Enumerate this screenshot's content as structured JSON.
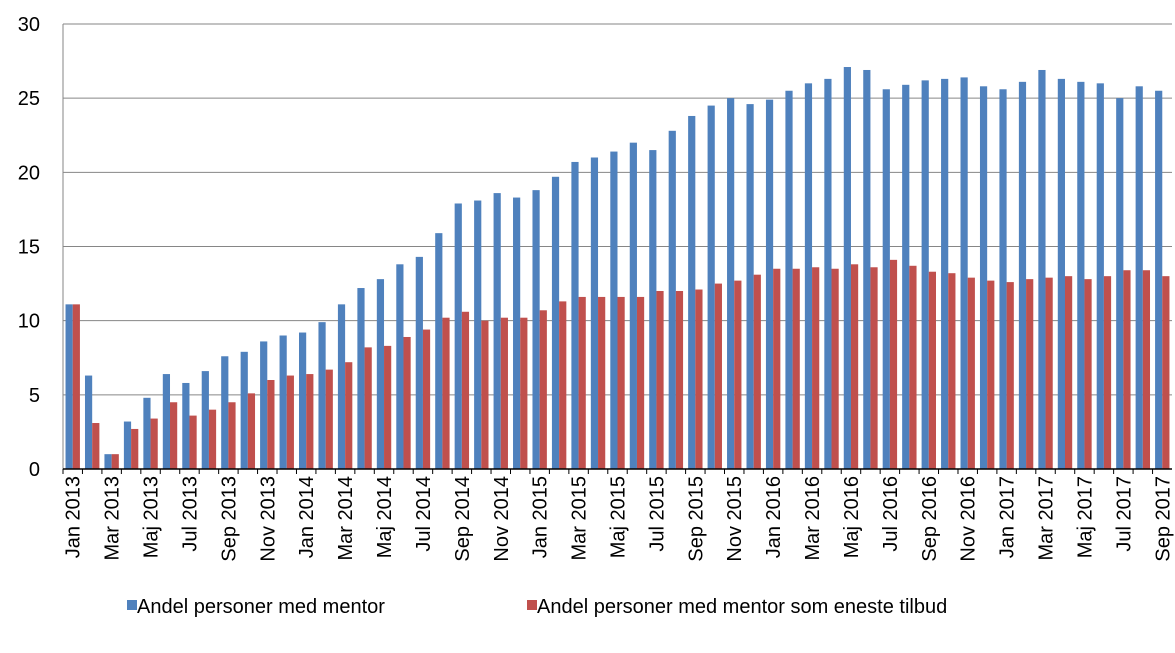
{
  "chart_data": {
    "type": "bar",
    "categories": [
      "Jan 2013",
      null,
      "Mar 2013",
      null,
      "Maj 2013",
      null,
      "Jul 2013",
      null,
      "Sep 2013",
      null,
      "Nov 2013",
      null,
      "Jan 2014",
      null,
      "Mar 2014",
      null,
      "Maj 2014",
      null,
      "Jul 2014",
      null,
      "Sep 2014",
      null,
      "Nov 2014",
      null,
      "Jan 2015",
      null,
      "Mar 2015",
      null,
      "Maj 2015",
      null,
      "Jul 2015",
      null,
      "Sep 2015",
      null,
      "Nov 2015",
      null,
      "Jan 2016",
      null,
      "Mar 2016",
      null,
      "Maj 2016",
      null,
      "Jul 2016",
      null,
      "Sep 2016",
      null,
      "Nov 2016",
      null,
      "Jan 2017",
      null,
      "Mar 2017",
      null,
      "Maj 2017",
      null,
      "Jul 2017",
      null,
      "Sep 2017"
    ],
    "series": [
      {
        "name": "Andel personer med mentor",
        "color": "#4f81bd",
        "values": [
          11.1,
          6.3,
          1.0,
          3.2,
          4.8,
          6.4,
          5.8,
          6.6,
          7.6,
          7.9,
          8.6,
          9.0,
          9.2,
          9.9,
          11.1,
          12.2,
          12.8,
          13.8,
          14.3,
          15.9,
          17.9,
          18.1,
          18.6,
          18.3,
          18.8,
          19.7,
          20.7,
          21.0,
          21.4,
          22.0,
          21.5,
          22.8,
          23.8,
          24.5,
          25.0,
          24.6,
          24.9,
          25.5,
          26.0,
          26.3,
          27.1,
          26.9,
          25.6,
          25.9,
          26.2,
          26.3,
          26.4,
          25.8,
          25.6,
          26.1,
          26.9,
          26.3,
          26.1,
          26.0,
          25.0,
          25.8,
          25.5
        ]
      },
      {
        "name": "Andel personer med mentor som eneste tilbud",
        "color": "#c0504d",
        "values": [
          11.1,
          3.1,
          1.0,
          2.7,
          3.4,
          4.5,
          3.6,
          4.0,
          4.5,
          5.1,
          6.0,
          6.3,
          6.4,
          6.7,
          7.2,
          8.2,
          8.3,
          8.9,
          9.4,
          10.2,
          10.6,
          10.0,
          10.2,
          10.2,
          10.7,
          11.3,
          11.6,
          11.6,
          11.6,
          11.6,
          12.0,
          12.0,
          12.1,
          12.5,
          12.7,
          13.1,
          13.5,
          13.5,
          13.6,
          13.5,
          13.8,
          13.6,
          14.1,
          13.7,
          13.3,
          13.2,
          12.9,
          12.7,
          12.6,
          12.8,
          12.9,
          13.0,
          12.8,
          13.0,
          13.4,
          13.4,
          13.0
        ]
      }
    ],
    "ylim": [
      0,
      30
    ],
    "yticks": [
      0,
      5,
      10,
      15,
      20,
      25,
      30
    ],
    "grid": true,
    "legend": "bottom"
  }
}
